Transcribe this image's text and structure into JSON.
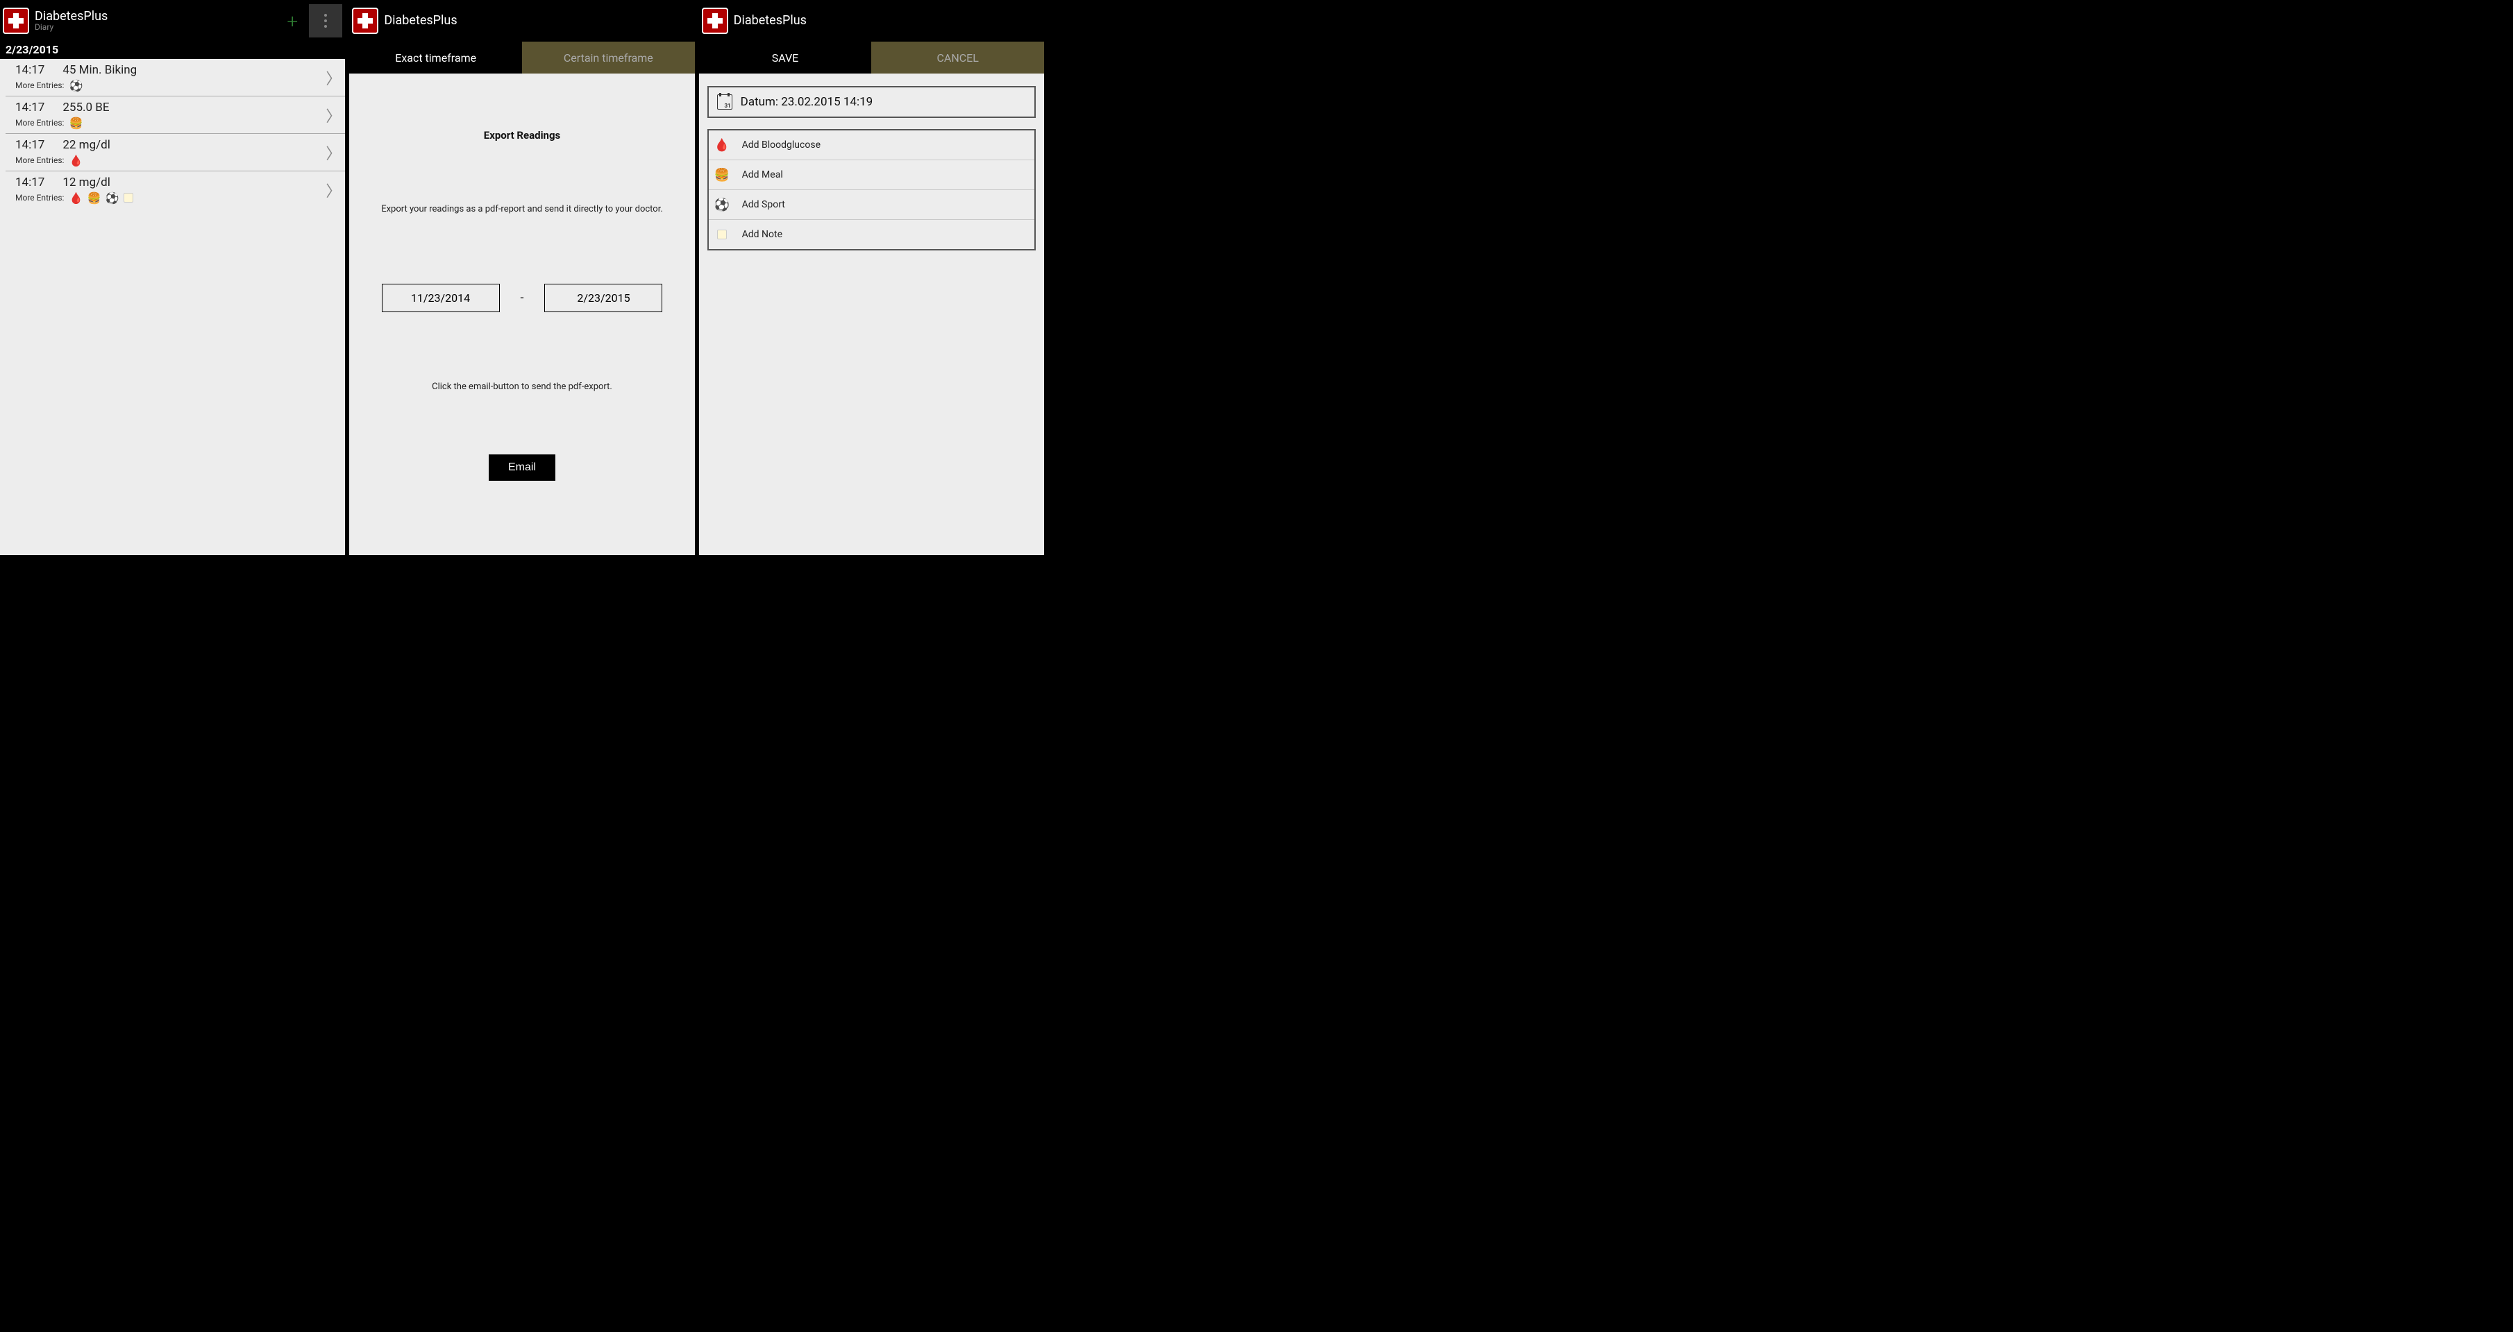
{
  "app": {
    "title": "DiabetesPlus",
    "subtitle": "Diary"
  },
  "panel1": {
    "date_header": "2/23/2015",
    "more_entries_label": "More Entries:",
    "entries": [
      {
        "time": "14:17",
        "value": "45 Min. Biking",
        "icons": [
          "ball"
        ]
      },
      {
        "time": "14:17",
        "value": "255.0 BE",
        "icons": [
          "burger"
        ]
      },
      {
        "time": "14:17",
        "value": "22 mg/dl",
        "icons": [
          "blood"
        ]
      },
      {
        "time": "14:17",
        "value": "12 mg/dl",
        "icons": [
          "blood",
          "burger",
          "ball",
          "note"
        ]
      }
    ]
  },
  "panel2": {
    "tabs": {
      "exact": "Exact timeframe",
      "certain": "Certain timeframe"
    },
    "title": "Export Readings",
    "desc": "Export your readings as a pdf-report and send it directly to your doctor.",
    "date_from": "11/23/2014",
    "date_to": "2/23/2015",
    "desc2": "Click the email-button to send the pdf-export.",
    "email_btn": "Email"
  },
  "panel3": {
    "tabs": {
      "save": "SAVE",
      "cancel": "CANCEL"
    },
    "datum_label": "Datum: 23.02.2015 14:19",
    "add_items": {
      "blood": "Add Bloodglucose",
      "meal": "Add Meal",
      "sport": "Add Sport",
      "note": "Add Note"
    }
  },
  "icons": {
    "ball": "⚽",
    "burger": "🍔",
    "blood": "🩸",
    "note": "📒"
  },
  "colors": {
    "bg_black": "#000000",
    "bg_panel": "#ededed",
    "accent_red": "#b00000",
    "inactive_tab": "#5a5330"
  }
}
